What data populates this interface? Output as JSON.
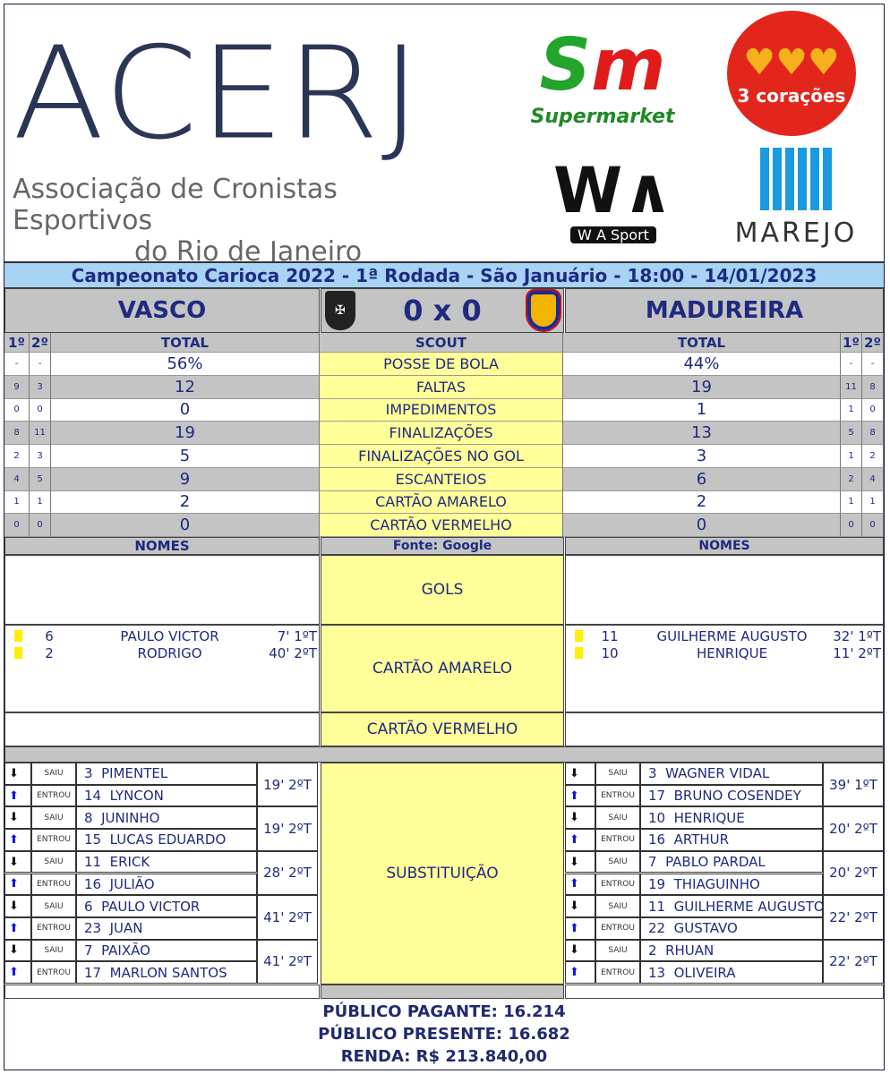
{
  "header": {
    "logo_text": "ACERJ",
    "org_line1": "Associação de Cronistas Esportivos",
    "org_line2": "do Rio de Janeiro",
    "sponsors": [
      "Supermarket",
      "3 corações",
      "W A Sport",
      "MAREJO"
    ]
  },
  "title": "Campeonato Carioca 2022 - 1ª Rodada - São Januário - 18:00 - 14/01/2023",
  "match": {
    "home": "VASCO",
    "away": "MADUREIRA",
    "score": "0 x 0"
  },
  "columns": {
    "first": "1º",
    "second": "2º",
    "total": "TOTAL",
    "scout": "SCOUT",
    "names": "NOMES",
    "source": "Fonte: Google"
  },
  "stats": [
    {
      "label": "POSSE DE BOLA",
      "home": [
        "-",
        "-",
        "56%"
      ],
      "away": [
        "44%",
        "-",
        "-"
      ]
    },
    {
      "label": "FALTAS",
      "home": [
        "9",
        "3",
        "12"
      ],
      "away": [
        "19",
        "11",
        "8"
      ]
    },
    {
      "label": "IMPEDIMENTOS",
      "home": [
        "0",
        "0",
        "0"
      ],
      "away": [
        "1",
        "1",
        "0"
      ]
    },
    {
      "label": "FINALIZAÇÕES",
      "home": [
        "8",
        "11",
        "19"
      ],
      "away": [
        "13",
        "5",
        "8"
      ]
    },
    {
      "label": "FINALIZAÇÕES NO GOL",
      "home": [
        "2",
        "3",
        "5"
      ],
      "away": [
        "3",
        "1",
        "2"
      ]
    },
    {
      "label": "ESCANTEIOS",
      "home": [
        "4",
        "5",
        "9"
      ],
      "away": [
        "6",
        "2",
        "4"
      ]
    },
    {
      "label": "CARTÃO AMARELO",
      "home": [
        "1",
        "1",
        "2"
      ],
      "away": [
        "2",
        "1",
        "1"
      ]
    },
    {
      "label": "CARTÃO VERMELHO",
      "home": [
        "0",
        "0",
        "0"
      ],
      "away": [
        "0",
        "0",
        "0"
      ]
    }
  ],
  "sections": {
    "goals": "GOLS",
    "yellow": "CARTÃO AMARELO",
    "red": "CARTÃO VERMELHO",
    "subs": "SUBSTITUIÇÃO"
  },
  "yellow_cards": {
    "home": [
      {
        "num": "6",
        "name": "PAULO VICTOR",
        "time": "7' 1ºT"
      },
      {
        "num": "2",
        "name": "RODRIGO",
        "time": "40' 2ºT"
      }
    ],
    "away": [
      {
        "num": "11",
        "name": "GUILHERME AUGUSTO",
        "time": "32' 1ºT"
      },
      {
        "num": "10",
        "name": "HENRIQUE",
        "time": "11' 2ºT"
      }
    ]
  },
  "sub_labels": {
    "out": "SAIU",
    "in": "ENTROU"
  },
  "subs": {
    "home": [
      {
        "out": "3  PIMENTEL",
        "in": "14  LYNCON",
        "time": "19' 2ºT"
      },
      {
        "out": "8  JUNINHO",
        "in": "15  LUCAS EDUARDO",
        "time": "19' 2ºT"
      },
      {
        "out": "11  ERICK",
        "in": "16  JULIÃO",
        "time": "28' 2ºT"
      },
      {
        "out": "6  PAULO VICTOR",
        "in": "23  JUAN",
        "time": "41' 2ºT"
      },
      {
        "out": "7  PAIXÃO",
        "in": "17  MARLON SANTOS",
        "time": "41' 2ºT"
      }
    ],
    "away": [
      {
        "out": "3  WAGNER VIDAL",
        "in": "17  BRUNO COSENDEY",
        "time": "39' 1ºT"
      },
      {
        "out": "10  HENRIQUE",
        "in": "16  ARTHUR",
        "time": "20' 2ºT"
      },
      {
        "out": "7  PABLO PARDAL",
        "in": "19  THIAGUINHO",
        "time": "20' 2ºT"
      },
      {
        "out": "11  GUILHERME AUGUSTO",
        "in": "22  GUSTAVO",
        "time": "22' 2ºT"
      },
      {
        "out": "2  RHUAN",
        "in": "13  OLIVEIRA",
        "time": "22' 2ºT"
      }
    ]
  },
  "footer": {
    "paying": "PÚBLICO PAGANTE: 16.214",
    "present": "PÚBLICO PRESENTE: 16.682",
    "income": "RENDA: R$ 213.840,00"
  },
  "colors": {
    "title_bg": "#a7d3f5",
    "scout_bg": "#ffff99",
    "text": "#1f2a80",
    "row_gray": "#c4c4c4"
  }
}
